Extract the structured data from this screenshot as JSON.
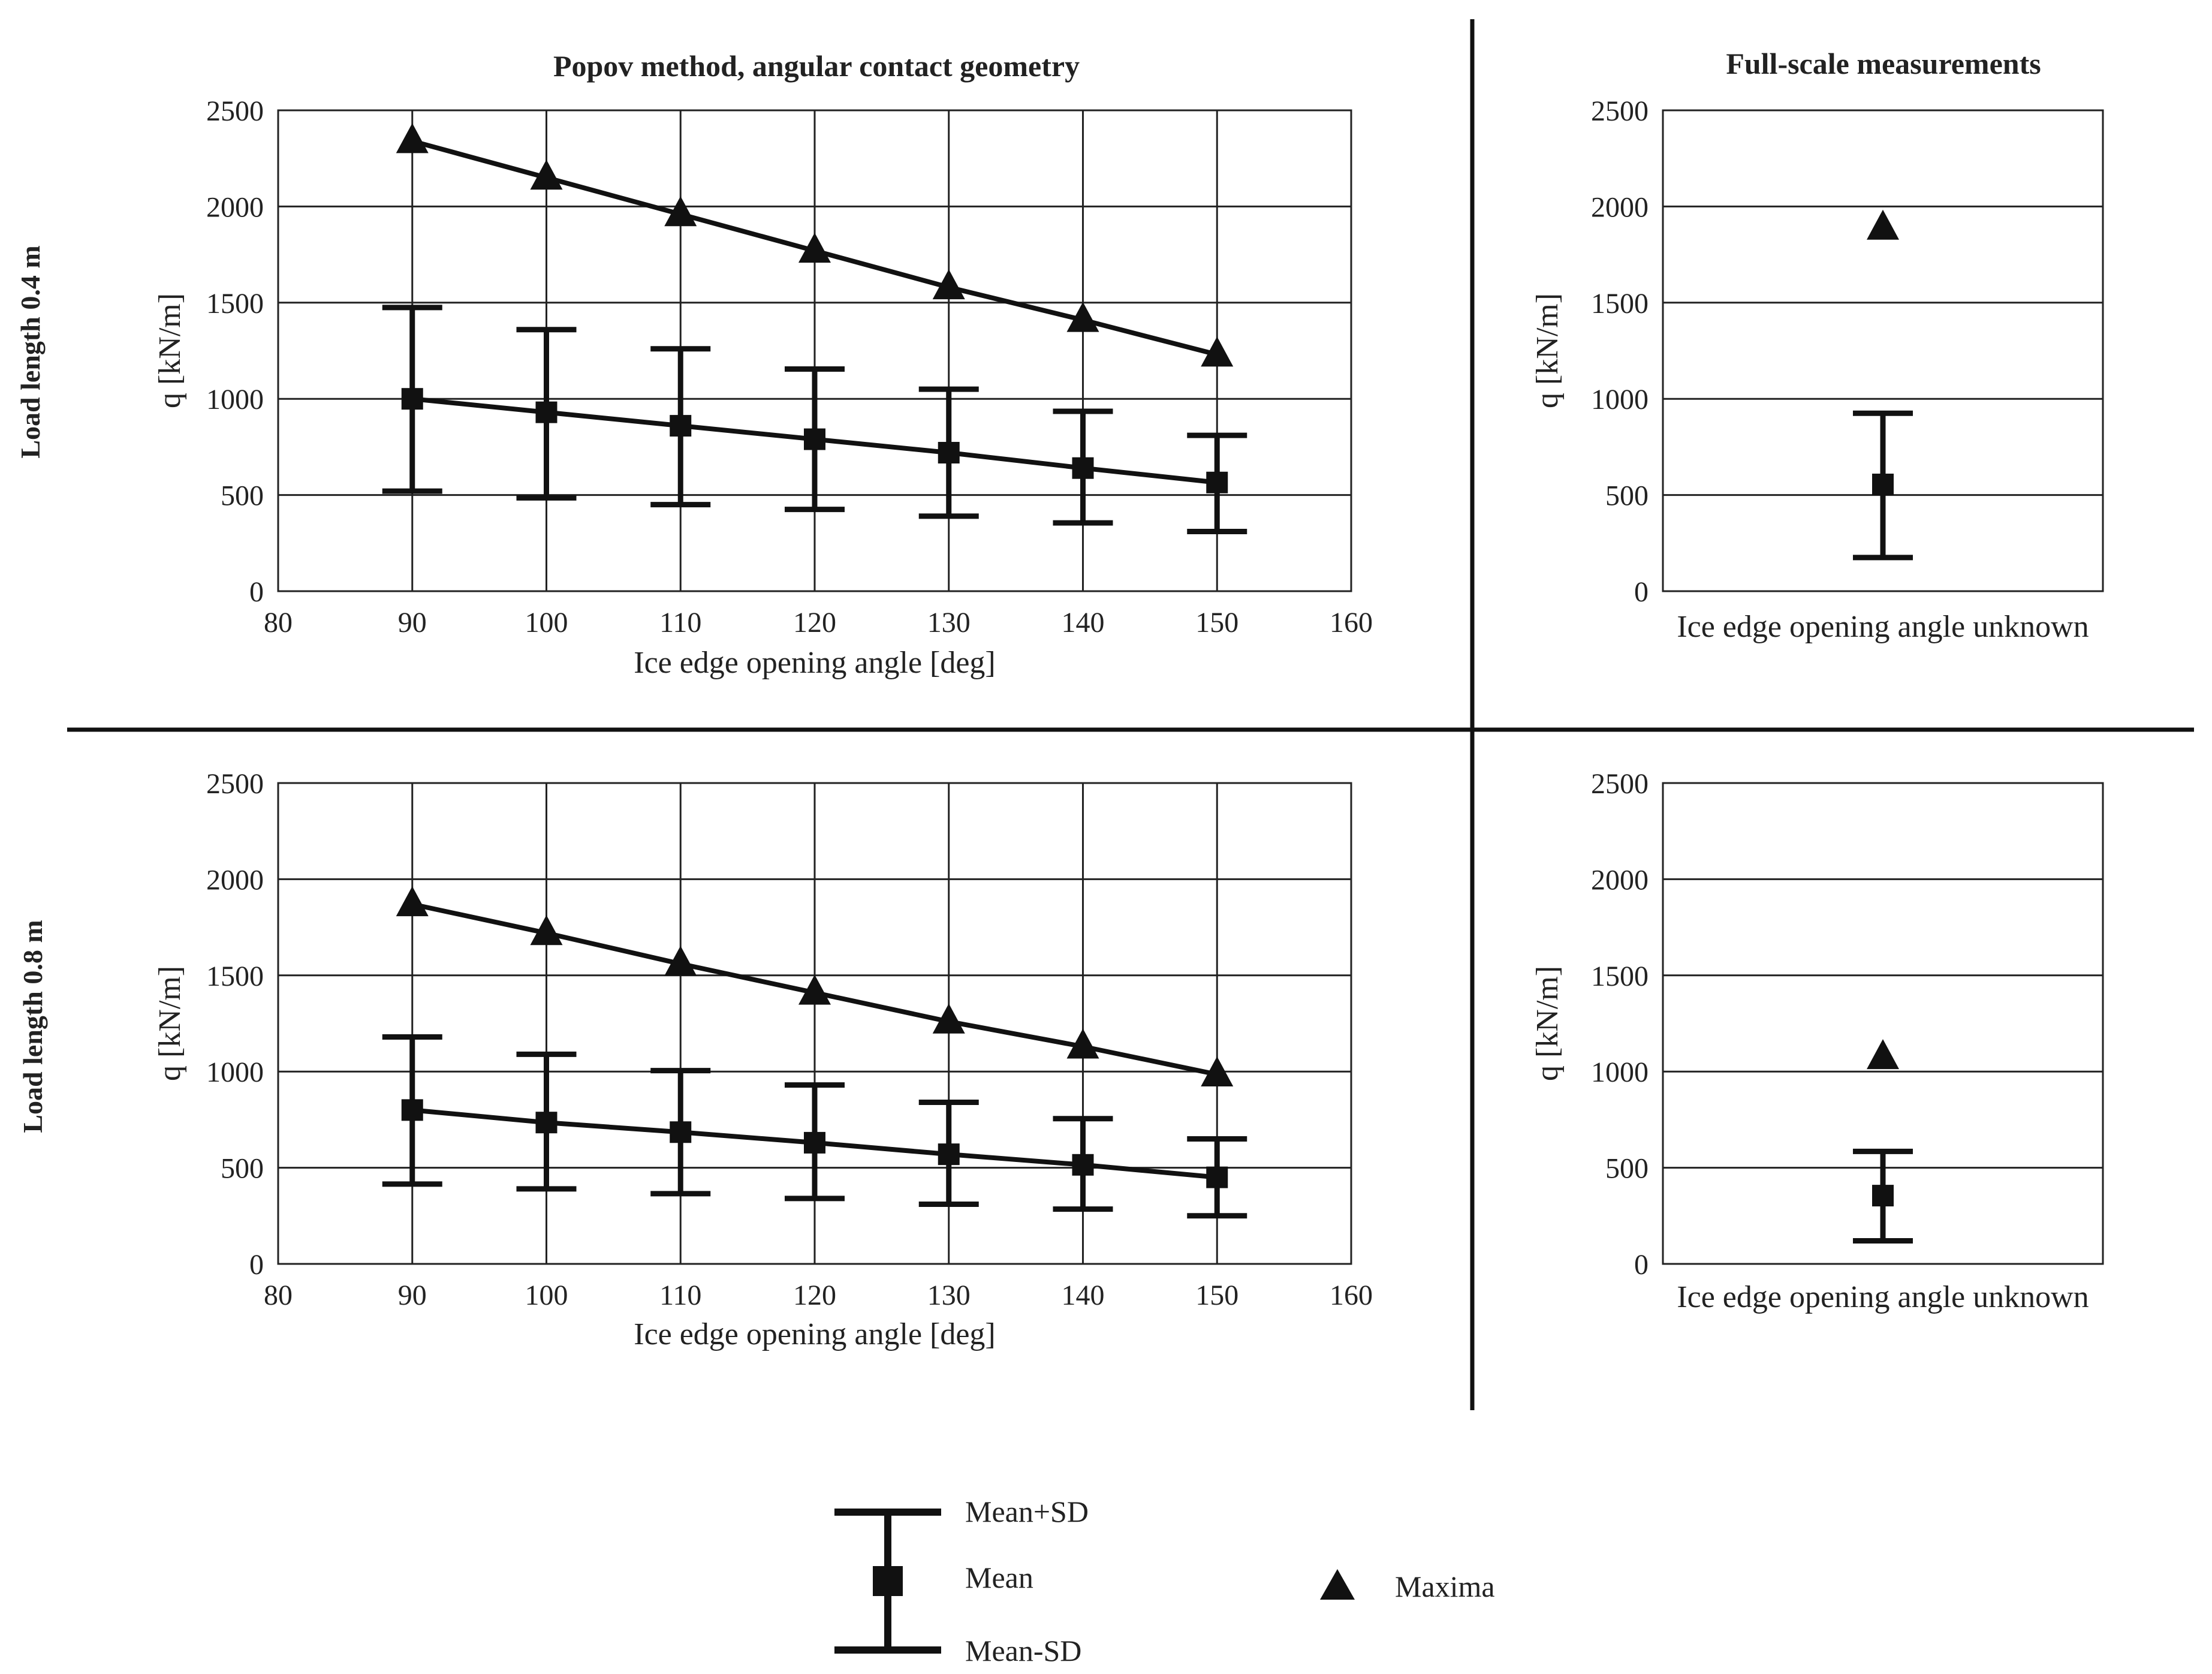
{
  "column_titles": [
    "Popov method, angular contact geometry",
    "Full-scale measurements"
  ],
  "row_titles": [
    "Load length 0.4 m",
    "Load length 0.8 m"
  ],
  "legend": {
    "mean_plus_sd": "Mean+SD",
    "mean": "Mean",
    "mean_minus_sd": "Mean-SD",
    "maxima": "Maxima"
  },
  "chart_data": [
    {
      "type": "line",
      "title": "Popov method, angular contact geometry",
      "row_label": "Load length 0.4 m",
      "xlabel": "Ice edge opening angle [deg]",
      "ylabel": "q [kN/m]",
      "xlim": [
        80,
        160
      ],
      "ylim": [
        0,
        2500
      ],
      "xticks": [
        80,
        90,
        100,
        110,
        120,
        130,
        140,
        150,
        160
      ],
      "yticks": [
        0,
        500,
        1000,
        1500,
        2000,
        2500
      ],
      "grid": true,
      "x": [
        90,
        100,
        110,
        120,
        130,
        140,
        150
      ],
      "series": [
        {
          "name": "Maxima",
          "values": [
            2340,
            2150,
            1960,
            1770,
            1580,
            1410,
            1230
          ]
        },
        {
          "name": "Mean",
          "values": [
            1000,
            930,
            860,
            790,
            720,
            640,
            565
          ]
        },
        {
          "name": "Mean+SD",
          "values": [
            1475,
            1360,
            1260,
            1155,
            1050,
            935,
            810
          ]
        },
        {
          "name": "Mean-SD",
          "values": [
            520,
            485,
            450,
            425,
            390,
            355,
            310
          ]
        }
      ]
    },
    {
      "type": "scatter",
      "title": "Full-scale measurements",
      "row_label": "Load length 0.4 m",
      "xlabel": "Ice edge opening angle unknown",
      "ylabel": "q [kN/m]",
      "ylim": [
        0,
        2500
      ],
      "yticks": [
        0,
        500,
        1000,
        1500,
        2000,
        2500
      ],
      "grid": true,
      "series": [
        {
          "name": "Maxima",
          "values": [
            1890
          ]
        },
        {
          "name": "Mean",
          "values": [
            555
          ]
        },
        {
          "name": "Mean+SD",
          "values": [
            925
          ]
        },
        {
          "name": "Mean-SD",
          "values": [
            175
          ]
        }
      ]
    },
    {
      "type": "line",
      "title": "",
      "row_label": "Load length 0.8 m",
      "xlabel": "Ice edge opening angle [deg]",
      "ylabel": "q [kN/m]",
      "xlim": [
        80,
        160
      ],
      "ylim": [
        0,
        2500
      ],
      "xticks": [
        80,
        90,
        100,
        110,
        120,
        130,
        140,
        150,
        160
      ],
      "yticks": [
        0,
        500,
        1000,
        1500,
        2000,
        2500
      ],
      "grid": true,
      "x": [
        90,
        100,
        110,
        120,
        130,
        140,
        150
      ],
      "series": [
        {
          "name": "Maxima",
          "values": [
            1870,
            1720,
            1560,
            1410,
            1260,
            1130,
            985
          ]
        },
        {
          "name": "Mean",
          "values": [
            800,
            735,
            685,
            630,
            570,
            515,
            450
          ]
        },
        {
          "name": "Mean+SD",
          "values": [
            1180,
            1090,
            1005,
            930,
            840,
            755,
            650
          ]
        },
        {
          "name": "Mean-SD",
          "values": [
            415,
            390,
            365,
            340,
            310,
            285,
            250
          ]
        }
      ]
    },
    {
      "type": "scatter",
      "title": "",
      "row_label": "Load length 0.8 m",
      "xlabel": "Ice edge opening angle unknown",
      "ylabel": "q [kN/m]",
      "ylim": [
        0,
        2500
      ],
      "yticks": [
        0,
        500,
        1000,
        1500,
        2000,
        2500
      ],
      "grid": true,
      "series": [
        {
          "name": "Maxima",
          "values": [
            1075
          ]
        },
        {
          "name": "Mean",
          "values": [
            355
          ]
        },
        {
          "name": "Mean+SD",
          "values": [
            585
          ]
        },
        {
          "name": "Mean-SD",
          "values": [
            120
          ]
        }
      ]
    }
  ]
}
